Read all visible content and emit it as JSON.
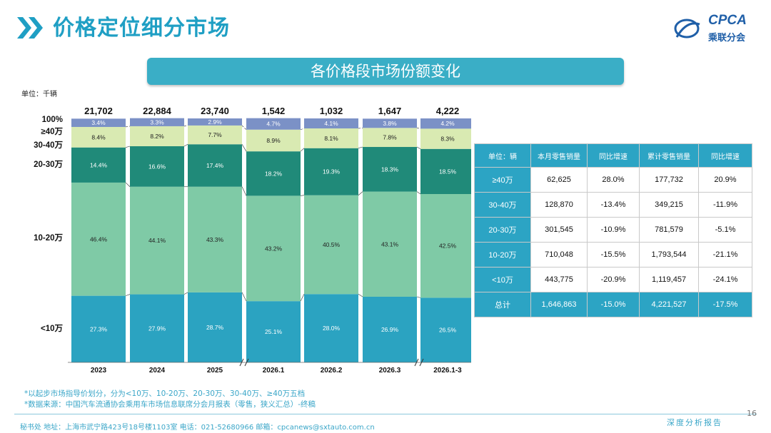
{
  "header": {
    "title": "价格定位细分市场"
  },
  "logo": {
    "text": "CPCA",
    "sub": "乘联分会"
  },
  "banner": {
    "title": "各价格段市场份额变化"
  },
  "unit": "单位：千辆",
  "chart_data": {
    "type": "bar",
    "stacked": true,
    "normalized": true,
    "title": "各价格段市场份额变化",
    "categories": [
      "2023",
      "2024",
      "2025",
      "2026.1",
      "2026.2",
      "2026.3",
      "2026.1-3"
    ],
    "totals": [
      "21,702",
      "22,884",
      "23,740",
      "1,542",
      "1,032",
      "1,647",
      "4,222"
    ],
    "y_labels": [
      "100%",
      "≥40万",
      "30-40万",
      "20-30万",
      "10-20万",
      "<10万"
    ],
    "series": [
      {
        "name": "<10万",
        "color": "#2ba3c1",
        "values": [
          27.3,
          27.9,
          28.7,
          25.1,
          28.0,
          26.9,
          26.5
        ]
      },
      {
        "name": "10-20万",
        "color": "#7fcaa6",
        "values": [
          46.4,
          44.1,
          43.3,
          43.2,
          40.5,
          43.1,
          42.5
        ]
      },
      {
        "name": "20-30万",
        "color": "#208a79",
        "values": [
          14.4,
          16.6,
          17.4,
          18.2,
          19.3,
          18.3,
          18.5
        ]
      },
      {
        "name": "30-40万",
        "color": "#d9eab2",
        "values": [
          8.4,
          8.2,
          7.7,
          8.9,
          8.1,
          7.8,
          8.3
        ]
      },
      {
        "name": "≥40万",
        "color": "#7b91c6",
        "values": [
          3.4,
          3.3,
          2.9,
          4.7,
          4.1,
          3.8,
          4.2
        ]
      }
    ],
    "ylim": [
      0,
      100
    ]
  },
  "table": {
    "headers": [
      "单位：辆",
      "本月零售销量",
      "同比增速",
      "累计零售销量",
      "同比增速"
    ],
    "rows": [
      [
        "≥40万",
        "62,625",
        "28.0%",
        "177,732",
        "20.9%"
      ],
      [
        "30-40万",
        "128,870",
        "-13.4%",
        "349,215",
        "-11.9%"
      ],
      [
        "20-30万",
        "301,545",
        "-10.9%",
        "781,579",
        "-5.1%"
      ],
      [
        "10-20万",
        "710,048",
        "-15.5%",
        "1,793,544",
        "-21.1%"
      ],
      [
        "<10万",
        "443,775",
        "-20.9%",
        "1,119,457",
        "-24.1%"
      ]
    ],
    "total": [
      "总计",
      "1,646,863",
      "-15.0%",
      "4,221,527",
      "-17.5%"
    ]
  },
  "footnotes": [
    "*以起步市场指导价划分，分为<10万、10-20万、20-30万、30-40万、≥40万五档",
    "*数据来源：中国汽车流通协会乘用车市场信息联席分会月报表（零售，狭义汇总）-终稿"
  ],
  "footer": {
    "contact": "秘书处  地址：上海市武宁路423号18号楼1103室  电话：021-52680966  邮箱：cpcanews@sxtauto.com.cn",
    "right": "深度分析报告",
    "page": "16"
  }
}
